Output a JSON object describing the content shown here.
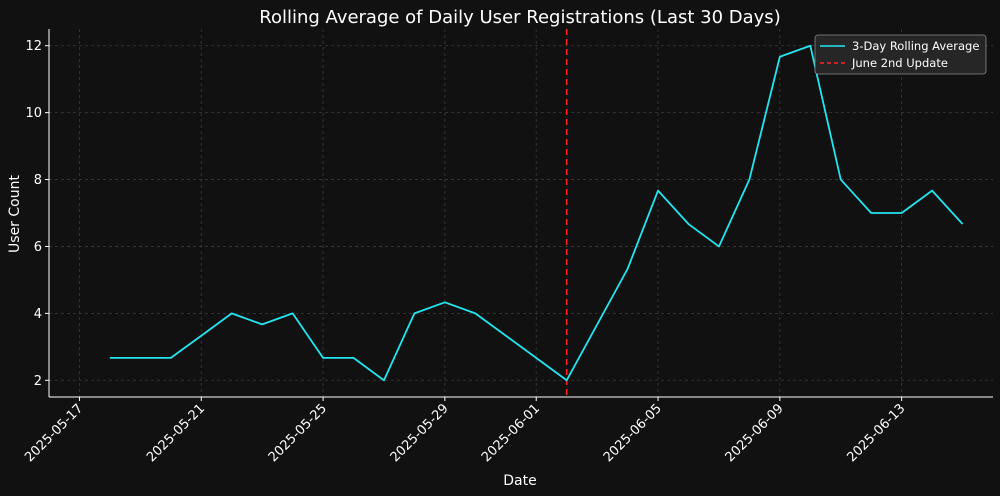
{
  "chart_data": {
    "type": "line",
    "title": "Rolling Average of Daily User Registrations (Last 30 Days)",
    "xlabel": "Date",
    "ylabel": "User Count",
    "xlim": [
      "2025-05-16",
      "2025-06-16"
    ],
    "ylim": [
      1.5,
      12.5
    ],
    "grid": true,
    "legend_position": "top-right",
    "x_ticks": [
      "2025-05-17",
      "2025-05-21",
      "2025-05-25",
      "2025-05-29",
      "2025-06-01",
      "2025-06-05",
      "2025-06-09",
      "2025-06-13"
    ],
    "y_ticks": [
      2,
      4,
      6,
      8,
      10,
      12
    ],
    "series": [
      {
        "name": "3-Day Rolling Average",
        "color": "#22e5f0",
        "style": "solid",
        "points": [
          {
            "x": "2025-05-18",
            "y": 2.67
          },
          {
            "x": "2025-05-19",
            "y": 2.67
          },
          {
            "x": "2025-05-20",
            "y": 2.67
          },
          {
            "x": "2025-05-21",
            "y": 3.33
          },
          {
            "x": "2025-05-22",
            "y": 4.0
          },
          {
            "x": "2025-05-23",
            "y": 3.67
          },
          {
            "x": "2025-05-24",
            "y": 4.0
          },
          {
            "x": "2025-05-25",
            "y": 2.67
          },
          {
            "x": "2025-05-26",
            "y": 2.67
          },
          {
            "x": "2025-05-27",
            "y": 2.0
          },
          {
            "x": "2025-05-28",
            "y": 4.0
          },
          {
            "x": "2025-05-29",
            "y": 4.33
          },
          {
            "x": "2025-05-30",
            "y": 4.0
          },
          {
            "x": "2025-06-02",
            "y": 2.0
          },
          {
            "x": "2025-06-04",
            "y": 5.33
          },
          {
            "x": "2025-06-05",
            "y": 7.67
          },
          {
            "x": "2025-06-06",
            "y": 6.67
          },
          {
            "x": "2025-06-07",
            "y": 6.0
          },
          {
            "x": "2025-06-08",
            "y": 8.0
          },
          {
            "x": "2025-06-09",
            "y": 11.67
          },
          {
            "x": "2025-06-10",
            "y": 12.0
          },
          {
            "x": "2025-06-11",
            "y": 8.0
          },
          {
            "x": "2025-06-12",
            "y": 7.0
          },
          {
            "x": "2025-06-13",
            "y": 7.0
          },
          {
            "x": "2025-06-14",
            "y": 7.67
          },
          {
            "x": "2025-06-15",
            "y": 6.67
          }
        ]
      }
    ],
    "annotations": [
      {
        "type": "vline",
        "x": "2025-06-02",
        "name": "June 2nd Update",
        "color": "#ff2222",
        "style": "dashed"
      }
    ]
  }
}
